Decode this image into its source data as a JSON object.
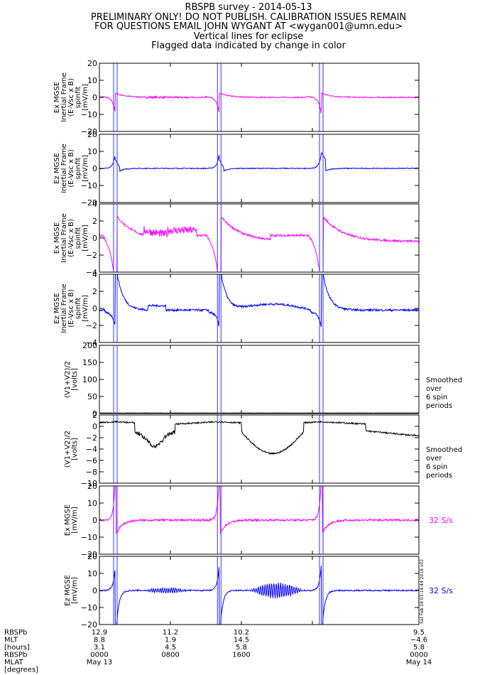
{
  "header": {
    "lines": [
      "RBSPB survey - 2014-05-13",
      "PRELIMINARY ONLY! DO NOT PUBLISH. CALIBRATION ISSUES REMAIN",
      "FOR QUESTIONS EMAIL JOHN WYGANT AT <wygan001@umn.edu>",
      "Vertical lines for eclipse",
      "Flagged data indicated by change in color"
    ]
  },
  "colors": {
    "magenta": "#ff00ff",
    "blue": "#0000ff",
    "black": "#000000",
    "eclipse": "#3333ff"
  },
  "eclipse_times": [
    1.6,
    2.0,
    13.3,
    13.7,
    24.8,
    25.2
  ],
  "chart_data": {
    "type": "line",
    "x_range": [
      0,
      36
    ],
    "x_ticks": [
      0,
      8,
      16,
      24,
      36
    ],
    "panels": [
      {
        "ylabel": [
          "Ex MGSE",
          "Inertial Frame",
          "(E-Vsc x B)",
          "spinfit",
          "[mV/m]"
        ],
        "yticks": [
          "20",
          "10",
          "0",
          "−10",
          "−20"
        ],
        "ylim": [
          -20,
          20
        ],
        "color": "magenta",
        "shape": "ex_spinfit",
        "amp": 10,
        "noise": 0.35,
        "clip": false
      },
      {
        "ylabel": [
          "Ez MGSE",
          "Inertial Frame",
          "(E-Vsc x B)",
          "spinfit",
          "[mV/m]"
        ],
        "yticks": [
          "20",
          "10",
          "0",
          "−10",
          "−20"
        ],
        "ylim": [
          -20,
          20
        ],
        "color": "blue",
        "shape": "ez_spinfit",
        "amp": 8.5,
        "noise": 0.3,
        "clip": false
      },
      {
        "ylabel": [
          "Ex MGSE",
          "Inertial Frame",
          "(E-Vsc x B)",
          "spinfit",
          "[mV/m]"
        ],
        "yticks": [
          "4",
          "2",
          "0",
          "−2",
          "−4"
        ],
        "ylim": [
          -4,
          4
        ],
        "color": "magenta",
        "shape": "ex_zoom",
        "amp": 1,
        "noise": 0.18,
        "clip": true
      },
      {
        "ylabel": [
          "Ez MGSE",
          "Inertial Frame",
          "(E-Vsc x B)",
          "spinfit",
          "[mV/m]"
        ],
        "yticks": [
          "4",
          "2",
          "0",
          "−2",
          "−4"
        ],
        "ylim": [
          -4,
          4
        ],
        "color": "blue",
        "shape": "ez_zoom",
        "amp": 1,
        "noise": 0.08,
        "clip": true
      },
      {
        "ylabel": [
          "(V1+V2)/2",
          "[volts]"
        ],
        "yticks": [
          "200",
          "150",
          "100",
          "50",
          "0"
        ],
        "ylim": [
          0,
          210
        ],
        "color": "black",
        "shape": "flat",
        "amp": 1,
        "noise": 0.3,
        "clip": false,
        "note": [
          "Smoothed",
          "over",
          "6 spin",
          "periods"
        ]
      },
      {
        "ylabel": [
          "(V1+V2)/2",
          "[volts]"
        ],
        "yticks": [
          "2",
          "0",
          "−2",
          "−4",
          "−6",
          "−8",
          "−10"
        ],
        "ylim": [
          -10,
          2
        ],
        "color": "black",
        "shape": "potential",
        "amp": 1,
        "noise": 0.05,
        "clip": false,
        "note": [
          "Smoothed",
          "over",
          "6 spin",
          "periods"
        ]
      },
      {
        "ylabel": [
          "Ex MGSE",
          "[mV/m]"
        ],
        "yticks": [
          "20",
          "10",
          "0",
          "−10",
          "−20"
        ],
        "ylim": [
          -20,
          20
        ],
        "color": "magenta",
        "shape": "ex_32",
        "amp": 1,
        "noise": 0.6,
        "clip": true,
        "note": [
          "32 S/s"
        ]
      },
      {
        "ylabel": [
          "Ez MGSE",
          "[mV/m]"
        ],
        "yticks": [
          "20",
          "10",
          "0",
          "−10",
          "−20"
        ],
        "ylim": [
          -20,
          20
        ],
        "color": "blue",
        "shape": "ez_32",
        "amp": 1,
        "noise": 0.4,
        "clip": true,
        "note": [
          "32 S/s"
        ]
      }
    ],
    "x_axis_labels": {
      "row_labels": [
        "RBSPb",
        "MLT",
        "[hours]",
        "RBSPb",
        "MLAT",
        "[degrees]"
      ],
      "columns": [
        [
          "12.9",
          "8.8",
          "3.1",
          "0000",
          "May 13"
        ],
        [
          "11.2",
          "1.9",
          "4.5",
          "0800",
          ""
        ],
        [
          "10.2",
          "14.5",
          "5.8",
          "1600",
          ""
        ],
        [
          "9.5",
          "−4.6",
          "5.8",
          "0000",
          "May 14"
        ]
      ]
    },
    "side_stamp": "Sat Feb 28 03:14:44 2018 v02"
  }
}
